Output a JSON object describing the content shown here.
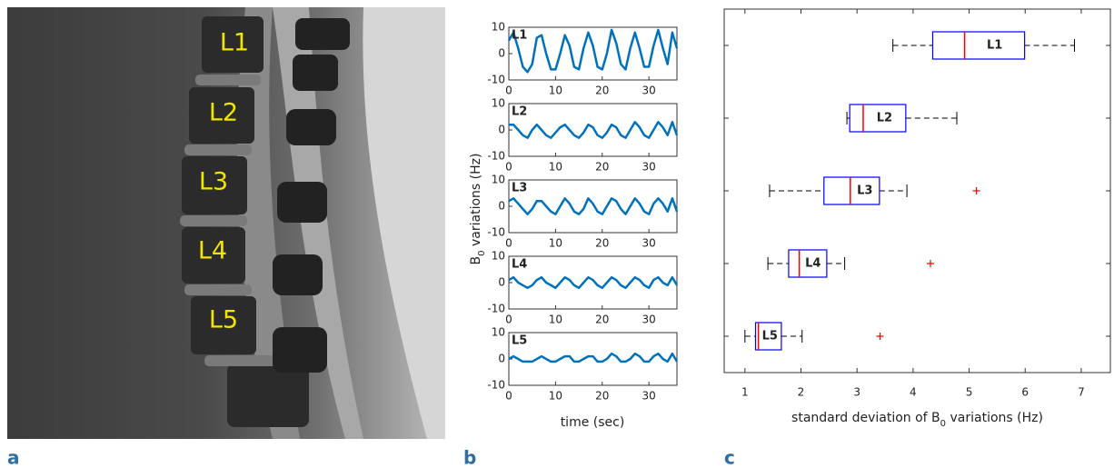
{
  "panel_labels": [
    "a",
    "b",
    "c"
  ],
  "image": {
    "labels": [
      "L1",
      "L2",
      "L3",
      "L4",
      "L5"
    ]
  },
  "chart_data": [
    {
      "type": "line",
      "ylabel_parts": [
        "B",
        "0",
        " variations (Hz)"
      ],
      "xlabel": "time (sec)",
      "color": "#0072bd",
      "x": [
        0,
        1,
        2,
        3,
        4,
        5,
        6,
        7,
        8,
        9,
        10,
        11,
        12,
        13,
        14,
        15,
        16,
        17,
        18,
        19,
        20,
        21,
        22,
        23,
        24,
        25,
        26,
        27,
        28,
        29,
        30,
        31,
        32,
        33,
        34,
        35,
        36
      ],
      "xlim": [
        0,
        36
      ],
      "xticks": [
        0,
        10,
        20,
        30
      ],
      "ylim": [
        -10,
        10
      ],
      "yticks": [
        -10,
        0,
        10
      ],
      "series": [
        {
          "name": "L1",
          "values": [
            5,
            8,
            2,
            -5,
            -7,
            -4,
            6,
            7,
            0,
            -6,
            -6,
            0,
            7,
            3,
            -5,
            -6,
            2,
            8,
            3,
            -5,
            -6,
            0,
            9,
            4,
            -4,
            -6,
            2,
            8,
            2,
            -5,
            -5,
            3,
            9,
            2,
            -4,
            8,
            2
          ]
        },
        {
          "name": "L2",
          "values": [
            2,
            2,
            0,
            -2,
            -3,
            0,
            2,
            0,
            -2,
            -3,
            -1,
            1,
            2,
            0,
            -2,
            -3,
            -1,
            2,
            1,
            -2,
            -3,
            -1,
            2,
            1,
            -2,
            -3,
            0,
            3,
            1,
            -2,
            -3,
            0,
            3,
            1,
            -2,
            3,
            -2
          ]
        },
        {
          "name": "L3",
          "values": [
            2,
            3,
            1,
            -1,
            -3,
            -1,
            2,
            2,
            0,
            -2,
            -3,
            0,
            3,
            1,
            -2,
            -3,
            -1,
            3,
            1,
            -2,
            -3,
            0,
            3,
            2,
            -1,
            -3,
            0,
            3,
            1,
            -2,
            -3,
            1,
            3,
            1,
            -2,
            3,
            -2
          ]
        },
        {
          "name": "L4",
          "values": [
            1,
            2,
            0,
            -1,
            -2,
            -1,
            1,
            2,
            0,
            -1,
            -2,
            0,
            2,
            1,
            -1,
            -2,
            0,
            2,
            1,
            -1,
            -2,
            0,
            2,
            1,
            -1,
            -2,
            0,
            2,
            1,
            -1,
            -2,
            1,
            2,
            0,
            -1,
            2,
            -1
          ]
        },
        {
          "name": "L5",
          "values": [
            0,
            1,
            0,
            -1,
            -1,
            -1,
            0,
            1,
            0,
            -1,
            -1,
            0,
            1,
            1,
            -1,
            -1,
            0,
            1,
            1,
            -1,
            -1,
            0,
            2,
            1,
            -1,
            -1,
            0,
            2,
            1,
            -1,
            -1,
            1,
            2,
            0,
            -1,
            2,
            -1
          ]
        }
      ]
    },
    {
      "type": "box",
      "xlabel_parts": [
        "standard deviation of B",
        "0",
        " variations (Hz)"
      ],
      "categories": [
        "L1",
        "L2",
        "L3",
        "L4",
        "L5"
      ],
      "xlim": [
        0.63,
        7.52
      ],
      "xticks": [
        1,
        2,
        3,
        4,
        5,
        6,
        7
      ],
      "box_color": "#0000ff",
      "median_color": "#ff0000",
      "flier_color": "#ff0000",
      "boxes": [
        {
          "whislo": 3.64,
          "q1": 4.35,
          "med": 4.92,
          "q3": 5.99,
          "whishi": 6.88,
          "fliers": []
        },
        {
          "whislo": 2.82,
          "q1": 2.87,
          "med": 3.11,
          "q3": 3.87,
          "whishi": 4.78,
          "fliers": []
        },
        {
          "whislo": 1.44,
          "q1": 2.41,
          "med": 2.88,
          "q3": 3.4,
          "whishi": 3.89,
          "fliers": [
            5.13
          ]
        },
        {
          "whislo": 1.41,
          "q1": 1.78,
          "med": 1.97,
          "q3": 2.46,
          "whishi": 2.78,
          "fliers": [
            4.31
          ]
        },
        {
          "whislo": 1.0,
          "q1": 1.19,
          "med": 1.24,
          "q3": 1.65,
          "whishi": 2.02,
          "fliers": [
            3.41
          ]
        }
      ]
    }
  ]
}
